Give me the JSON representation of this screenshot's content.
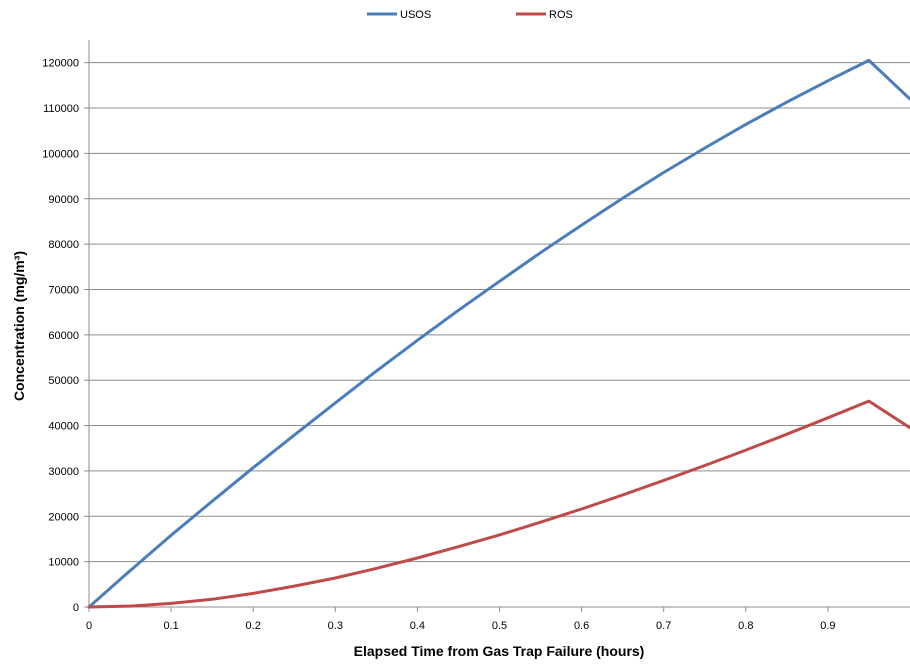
{
  "chart_data": {
    "type": "line",
    "xlabel": "Elapsed Time from Gas Trap Failure (hours)",
    "ylabel": "Concentration (mg/m³)",
    "xlim": [
      0,
      1
    ],
    "ylim": [
      0,
      125000
    ],
    "x_ticks": [
      0,
      0.1,
      0.2,
      0.3,
      0.4,
      0.5,
      0.6,
      0.7,
      0.8,
      0.9
    ],
    "x_tick_labels": [
      "0",
      "0.1",
      "0.2",
      "0.3",
      "0.4",
      "0.5",
      "0.6",
      "0.7",
      "0.8",
      "0.9"
    ],
    "y_ticks": [
      0,
      10000,
      20000,
      30000,
      40000,
      50000,
      60000,
      70000,
      80000,
      90000,
      100000,
      110000,
      120000
    ],
    "y_tick_labels": [
      "0",
      "10000",
      "20000",
      "30000",
      "40000",
      "50000",
      "60000",
      "70000",
      "80000",
      "90000",
      "100000",
      "110000",
      "120000"
    ],
    "grid": "horizontal",
    "legend_position": "top",
    "x": [
      0,
      0.05,
      0.1,
      0.15,
      0.2,
      0.25,
      0.3,
      0.35,
      0.4,
      0.45,
      0.5,
      0.55,
      0.6,
      0.65,
      0.7,
      0.75,
      0.8,
      0.85,
      0.9,
      0.95,
      1.0
    ],
    "series": [
      {
        "name": "USOS",
        "color": "#4a7ebb",
        "values": [
          0,
          8000,
          15800,
          23300,
          30700,
          37900,
          45000,
          52000,
          58800,
          65400,
          71800,
          78100,
          84200,
          90100,
          95800,
          101200,
          106400,
          111300,
          116000,
          120500,
          112000
        ]
      },
      {
        "name": "ROS",
        "color": "#be4b48",
        "values": [
          0,
          200,
          800,
          1700,
          3000,
          4600,
          6400,
          8500,
          10800,
          13300,
          15900,
          18700,
          21600,
          24700,
          27900,
          31200,
          34600,
          38100,
          41700,
          45400,
          39500
        ]
      }
    ]
  }
}
